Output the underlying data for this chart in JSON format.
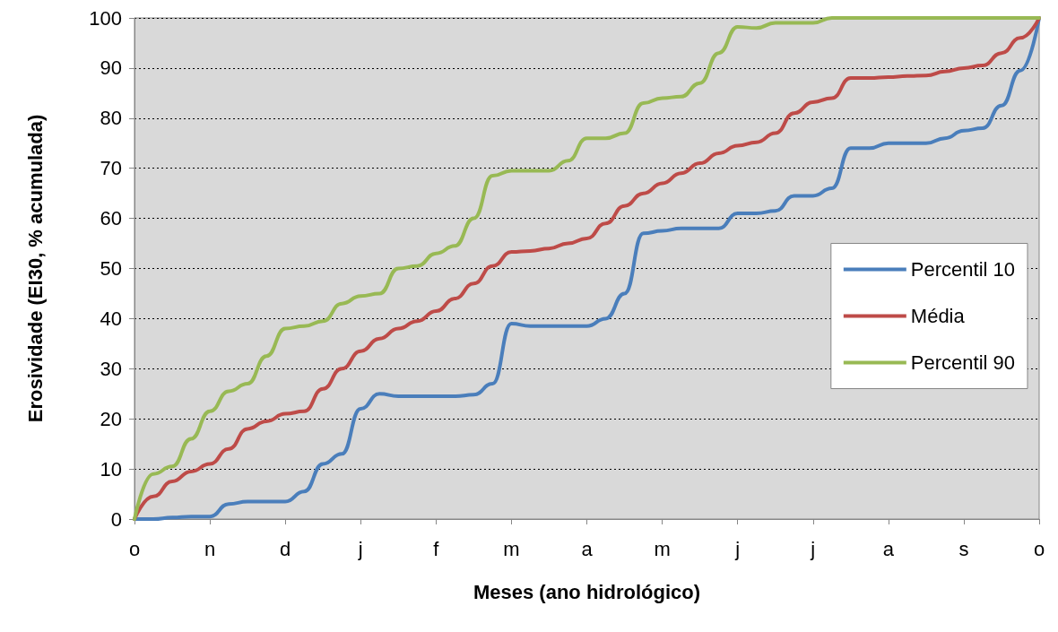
{
  "chart_data": {
    "type": "line",
    "xlabel": "Meses (ano hidrológico)",
    "ylabel": "Erosividade (EI30, % acumulada)",
    "categories": [
      "o",
      null,
      null,
      null,
      "n",
      null,
      null,
      null,
      "d",
      null,
      null,
      null,
      "j",
      null,
      null,
      null,
      "f",
      null,
      null,
      null,
      "m",
      null,
      null,
      null,
      "a",
      null,
      null,
      null,
      "m",
      null,
      null,
      null,
      "j",
      null,
      null,
      null,
      "j",
      null,
      null,
      null,
      "a",
      null,
      null,
      null,
      "s",
      null,
      null,
      null,
      "o"
    ],
    "ylim": [
      0,
      100
    ],
    "yticks": [
      0,
      10,
      20,
      30,
      40,
      50,
      60,
      70,
      80,
      90,
      100
    ],
    "grid": "y",
    "legend": "right",
    "marker": "none",
    "line_style": "solid",
    "series": [
      {
        "name": "Percentil 10",
        "color": "#4a7ebb",
        "values": [
          0,
          0,
          0.3,
          0.5,
          0.5,
          3,
          3.5,
          3.5,
          3.5,
          5.5,
          11,
          13,
          22,
          25,
          24.5,
          24.5,
          24.5,
          24.5,
          24.8,
          27,
          39,
          38.5,
          38.5,
          38.5,
          38.5,
          40,
          45,
          57,
          57.5,
          58,
          58,
          58,
          61,
          61,
          61.5,
          64.5,
          64.5,
          66,
          74,
          74,
          75,
          75,
          75,
          76,
          77.5,
          78,
          82.5,
          89.5,
          100
        ]
      },
      {
        "name": "Média",
        "color": "#be4b48",
        "values": [
          0,
          4.5,
          7.5,
          9.5,
          11,
          14,
          18,
          19.5,
          21,
          21.5,
          26,
          30,
          33.5,
          36,
          38,
          39.5,
          41.5,
          44,
          47,
          50.5,
          53.3,
          53.5,
          54,
          55,
          56,
          59,
          62.5,
          65,
          67,
          69,
          71,
          73,
          74.5,
          75.2,
          77,
          81,
          83.2,
          84,
          88,
          88,
          88.2,
          88.4,
          88.5,
          89.3,
          90,
          90.5,
          93,
          96,
          100
        ]
      },
      {
        "name": "Percentil 90",
        "color": "#98b954",
        "values": [
          0,
          9,
          10.5,
          16,
          21.5,
          25.5,
          27,
          32.5,
          38,
          38.5,
          39.5,
          43,
          44.5,
          45,
          50,
          50.5,
          53,
          54.5,
          60,
          68.5,
          69.5,
          69.5,
          69.5,
          71.5,
          76,
          76,
          77,
          83,
          84,
          84.3,
          87,
          93,
          98.2,
          98,
          99,
          99,
          99,
          100,
          100,
          100,
          100,
          100,
          100,
          100,
          100,
          100,
          100,
          100,
          100
        ]
      }
    ]
  }
}
